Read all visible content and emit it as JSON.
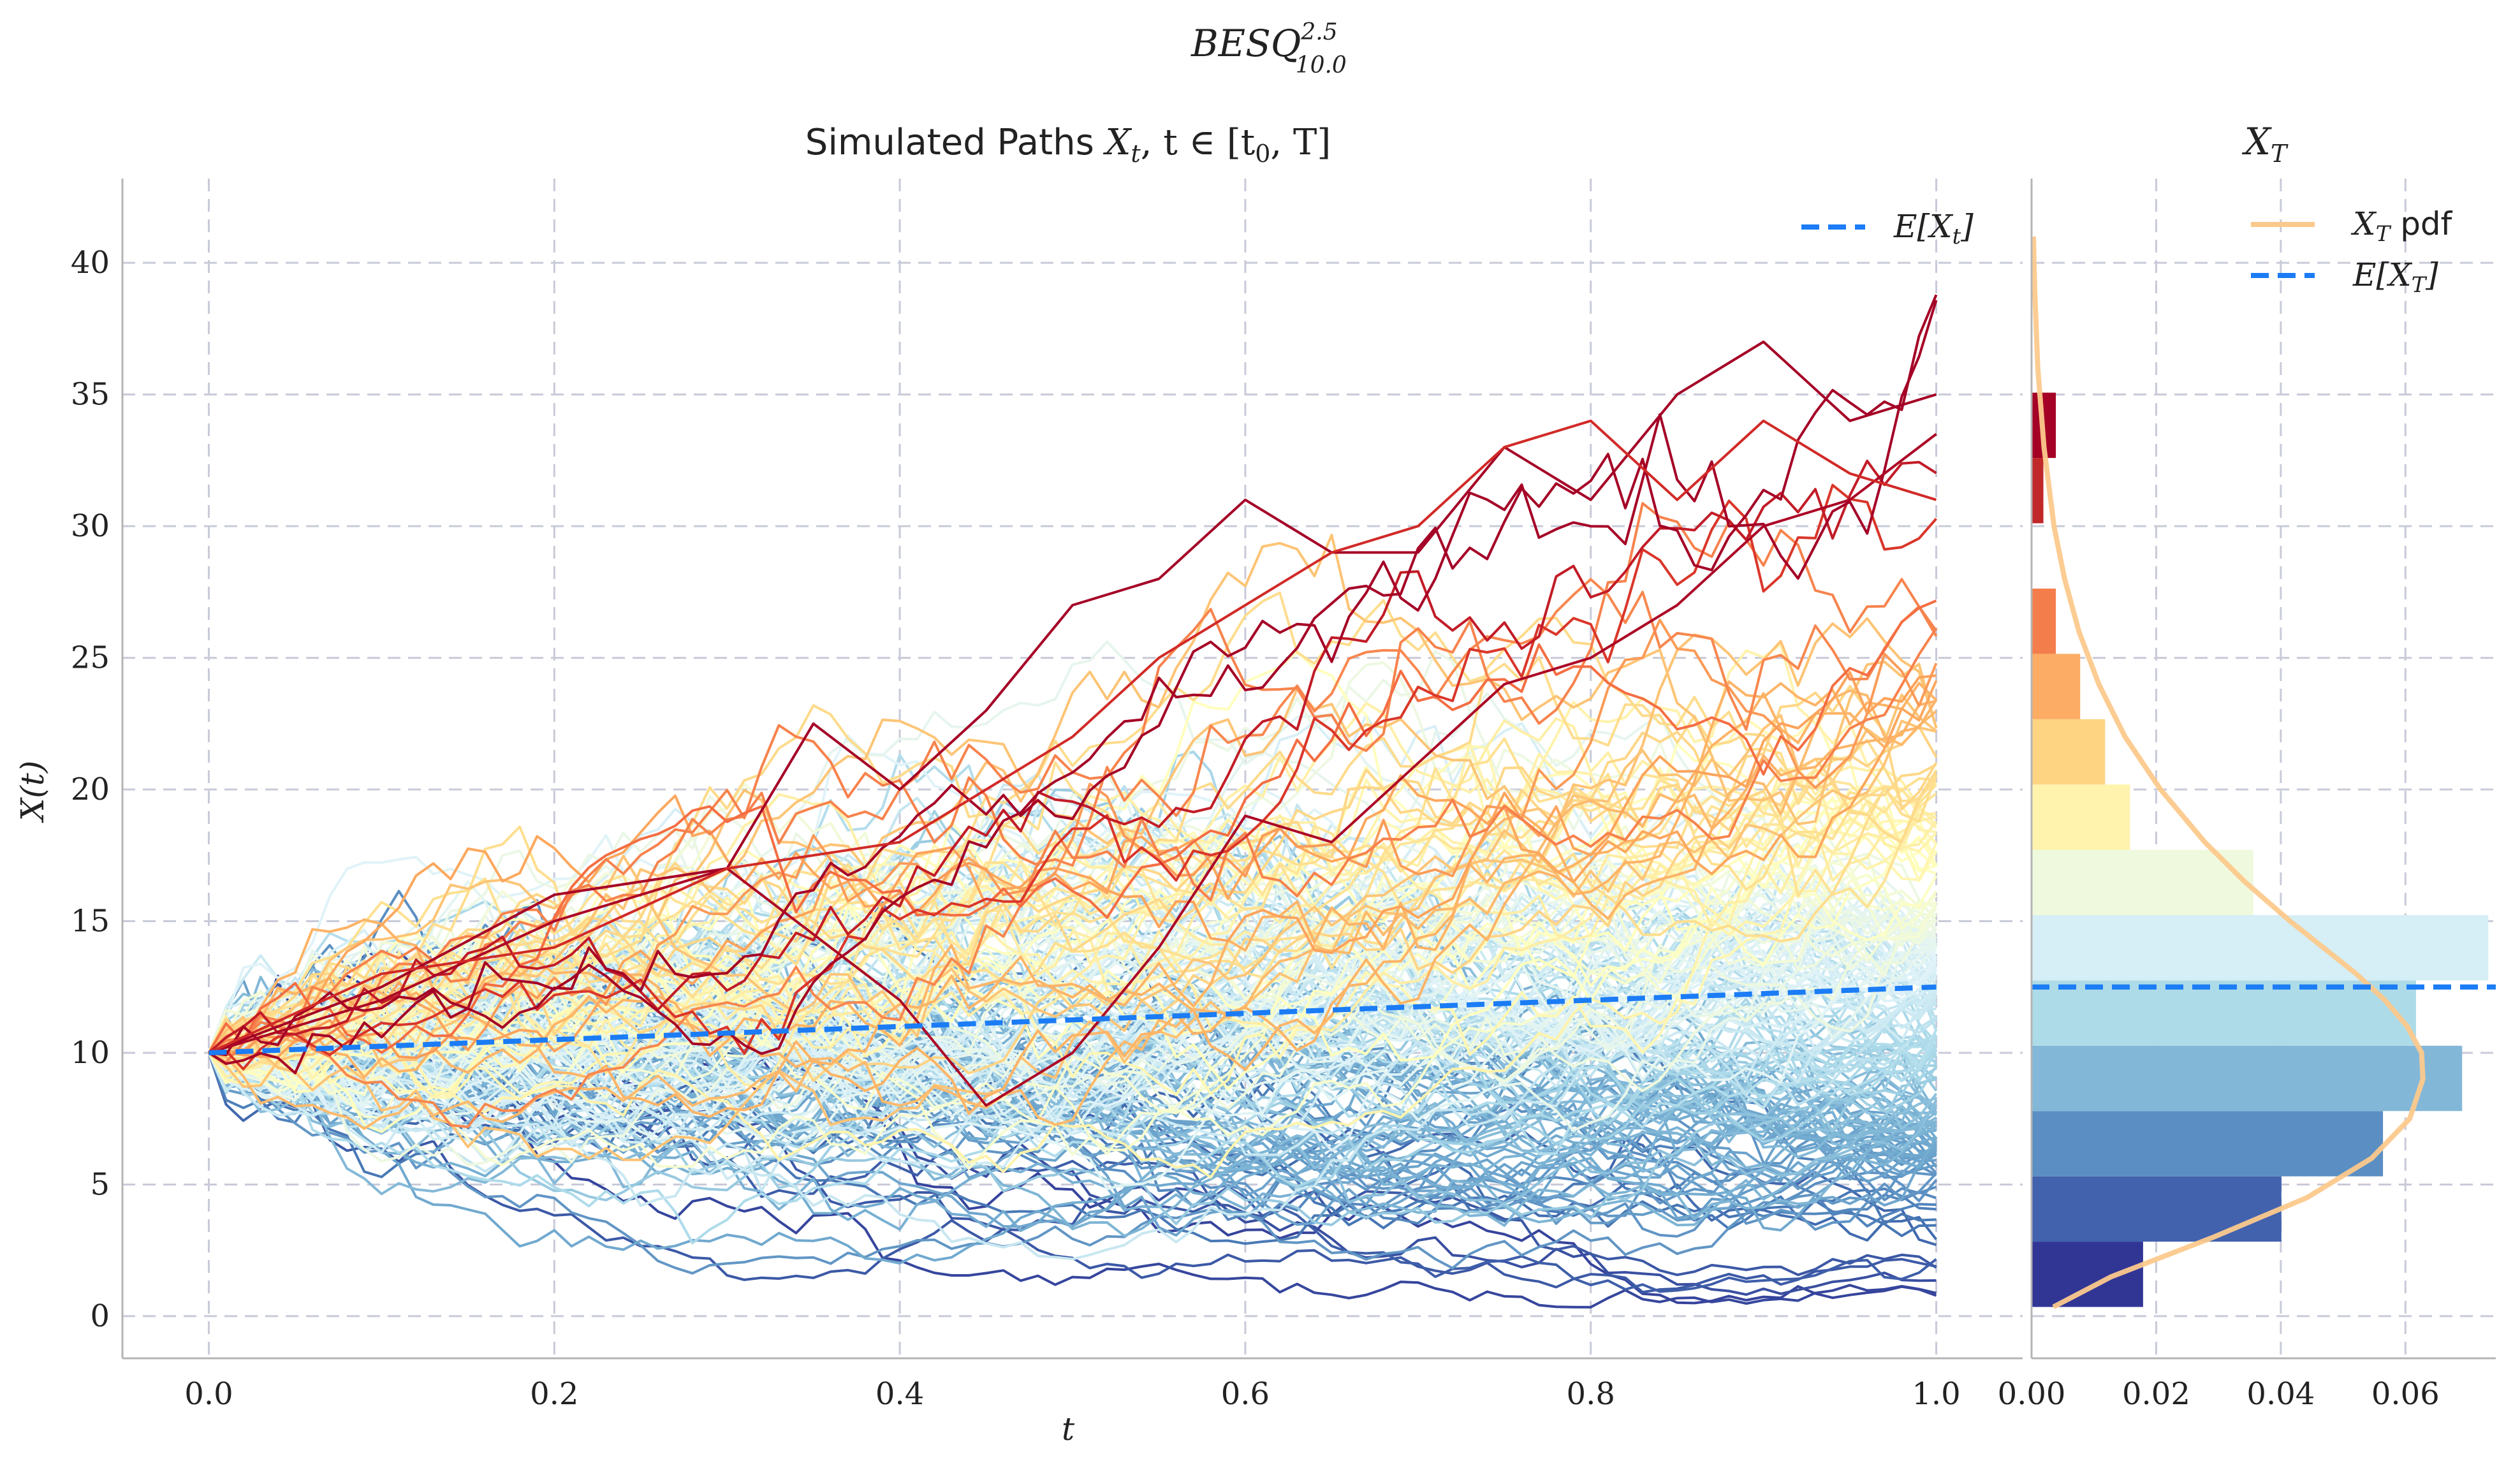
{
  "figure": {
    "suptitle": {
      "main": "BESQ",
      "sup": "2.5",
      "sub": "10.0"
    }
  },
  "chart_data": [
    {
      "type": "line",
      "title": {
        "prefix": "Simulated Paths ",
        "math": "X",
        "math_sub": "t",
        "rest": ", t ∈ [t",
        "rest_sub": "0",
        "rest_end": ", T]"
      },
      "xlabel": "t",
      "ylabel": "X(t)",
      "xlim": [
        -0.05,
        1.05
      ],
      "ylim": [
        -1.6,
        43.2
      ],
      "xticks": [
        0.0,
        0.2,
        0.4,
        0.6,
        0.8,
        1.0
      ],
      "xtick_labels": [
        "0.0",
        "0.2",
        "0.4",
        "0.6",
        "0.8",
        "1.0"
      ],
      "yticks": [
        0,
        5,
        10,
        15,
        20,
        25,
        30,
        35,
        40
      ],
      "ytick_labels": [
        "0",
        "5",
        "10",
        "15",
        "20",
        "25",
        "30",
        "35",
        "40"
      ],
      "grid": true,
      "legend_position": "top-right",
      "legend": [
        {
          "label_math": "E[X",
          "label_sub": "t",
          "label_end": "]",
          "style": "dashed",
          "color": "#1b7cf5"
        }
      ],
      "n_paths": 200,
      "x0": 10.0,
      "colormap": "RdYlBu_r (colored by terminal value)",
      "highlighted_paths": [
        {
          "t": [
            0.0,
            0.1,
            0.2,
            0.3,
            0.35,
            0.4,
            0.45,
            0.5,
            0.55,
            0.6,
            0.65,
            0.7,
            0.75,
            0.8,
            0.85,
            0.9,
            0.95,
            1.0
          ],
          "y": [
            10,
            12.5,
            16,
            17,
            22.5,
            20,
            23,
            27,
            28,
            31,
            29,
            29,
            33,
            31,
            35,
            37,
            34,
            35
          ]
        },
        {
          "t": [
            0.0,
            0.1,
            0.2,
            0.3,
            0.4,
            0.45,
            0.5,
            0.55,
            0.6,
            0.65,
            0.7,
            0.75,
            0.8,
            0.85,
            0.9,
            0.95,
            1.0
          ],
          "y": [
            10,
            12,
            15,
            17,
            12,
            8,
            10,
            14,
            19,
            18,
            21,
            24,
            25,
            27,
            30,
            31,
            33.5
          ]
        },
        {
          "t": [
            0.0,
            0.1,
            0.2,
            0.3,
            0.4,
            0.5,
            0.55,
            0.6,
            0.65,
            0.7,
            0.75,
            0.8,
            0.85,
            0.9,
            0.95,
            1.0
          ],
          "y": [
            10,
            13,
            14,
            17,
            18,
            22,
            25,
            27,
            29,
            30,
            33,
            34,
            31,
            34,
            32,
            31
          ]
        }
      ],
      "mean_curve": {
        "t": [
          0.0,
          1.0
        ],
        "y": [
          10.0,
          12.5
        ]
      }
    },
    {
      "type": "bar",
      "orientation": "horizontal",
      "title": {
        "math": "X",
        "math_sub": "T"
      },
      "xlim": [
        0.0,
        0.0745
      ],
      "ylim": [
        -1.6,
        43.2
      ],
      "xticks": [
        0.0,
        0.02,
        0.04,
        0.06
      ],
      "xtick_labels": [
        "0.00",
        "0.02",
        "0.04",
        "0.06"
      ],
      "grid": true,
      "legend_position": "top-right",
      "legend": [
        {
          "label_math": "X",
          "label_sub": "T",
          "label_end": " pdf",
          "style": "solid",
          "color": "#fcc98c"
        },
        {
          "label_math": "E[X",
          "label_sub": "T",
          "label_end": "]",
          "style": "dashed",
          "color": "#1b7cf5"
        }
      ],
      "bins": [
        {
          "y0": 0.35,
          "y1": 2.83,
          "density": 0.0179,
          "color": "#313695"
        },
        {
          "y0": 2.83,
          "y1": 5.31,
          "density": 0.0401,
          "color": "#4262ae"
        },
        {
          "y0": 5.31,
          "y1": 7.79,
          "density": 0.0564,
          "color": "#5b8fc3"
        },
        {
          "y0": 7.79,
          "y1": 10.27,
          "density": 0.0691,
          "color": "#83b7d8"
        },
        {
          "y0": 10.27,
          "y1": 12.75,
          "density": 0.0617,
          "color": "#addbe8"
        },
        {
          "y0": 12.75,
          "y1": 15.23,
          "density": 0.0733,
          "color": "#d6eef5"
        },
        {
          "y0": 15.23,
          "y1": 17.71,
          "density": 0.0356,
          "color": "#eff9dd"
        },
        {
          "y0": 17.71,
          "y1": 20.19,
          "density": 0.0158,
          "color": "#fff3ad"
        },
        {
          "y0": 20.19,
          "y1": 22.67,
          "density": 0.0118,
          "color": "#fed483"
        },
        {
          "y0": 22.67,
          "y1": 25.15,
          "density": 0.0078,
          "color": "#fcac64"
        },
        {
          "y0": 25.15,
          "y1": 27.63,
          "density": 0.0039,
          "color": "#f47d4c"
        },
        {
          "y0": 27.63,
          "y1": 30.11,
          "density": 0.0,
          "color": "#e0502e"
        },
        {
          "y0": 30.11,
          "y1": 32.59,
          "density": 0.0019,
          "color": "#c0282a"
        },
        {
          "y0": 32.59,
          "y1": 35.07,
          "density": 0.0039,
          "color": "#a50026"
        }
      ],
      "pdf_curve": {
        "y": [
          0.35,
          1.5,
          3,
          4.5,
          6,
          7.5,
          9,
          10,
          11,
          12,
          13,
          14,
          15,
          16.5,
          18,
          20,
          22,
          24,
          26,
          28,
          30,
          33,
          36,
          39,
          41
        ],
        "density": [
          0.0035,
          0.0128,
          0.0292,
          0.0442,
          0.0546,
          0.0607,
          0.0628,
          0.0626,
          0.0603,
          0.0567,
          0.0521,
          0.0468,
          0.0415,
          0.0342,
          0.0278,
          0.0207,
          0.015,
          0.0108,
          0.0076,
          0.0053,
          0.0036,
          0.002,
          0.001,
          0.0005,
          0.0003
        ]
      },
      "mean_line": {
        "y": 12.5
      }
    }
  ]
}
